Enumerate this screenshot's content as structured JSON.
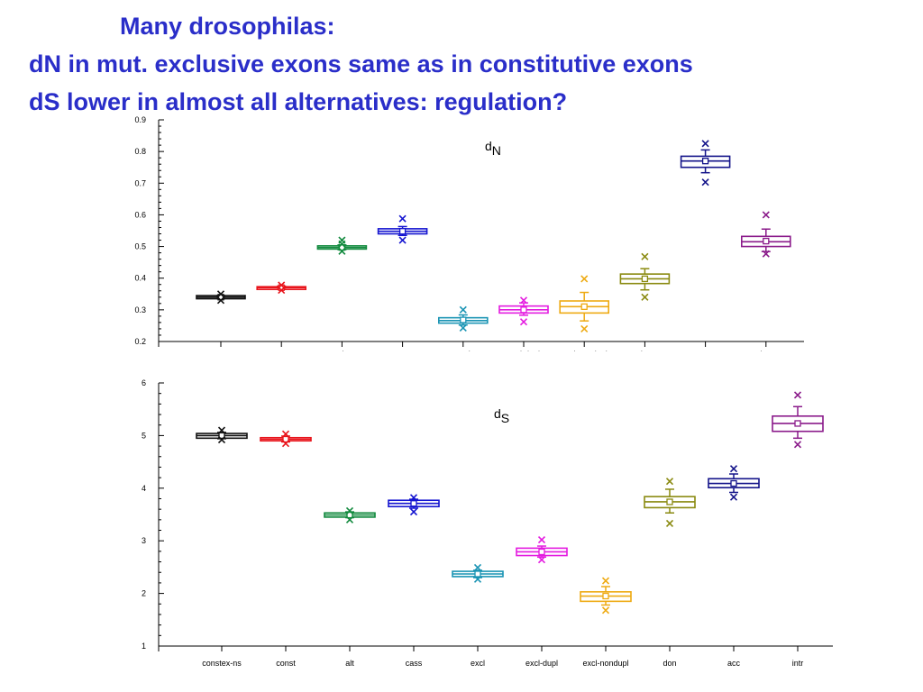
{
  "slide": {
    "title_line1": "Many drosophilas:",
    "title_line2": "dN in mut. exclusive exons same as in constitutive exons",
    "title_line3": "dS lower in almost all alternatives: regulation?",
    "title_color": "#2a2ec9"
  },
  "chart_data": [
    {
      "type": "box",
      "label_main": "d",
      "label_sub": "N",
      "ylim": [
        0.2,
        0.9
      ],
      "yticks": [
        "0.2",
        "0.3",
        "0.4",
        "0.5",
        "0.6",
        "0.7",
        "0.8",
        "0.9"
      ],
      "categories": [
        "constex-ns",
        "const",
        "alt",
        "cass",
        "excl",
        "excl-dupl",
        "excl-nondupl",
        "don",
        "acc",
        "intr"
      ],
      "colors": [
        "#111111",
        "#e8141b",
        "#128a3e",
        "#1414d0",
        "#1a94b4",
        "#e41be0",
        "#eeaa12",
        "#8a8a10",
        "#14148a",
        "#8a1a8a"
      ],
      "boxes": [
        {
          "q1": 0.335,
          "median": 0.34,
          "q3": 0.345,
          "whisker_low": 0.335,
          "whisker_high": 0.345,
          "mean": 0.34,
          "outliers": [
            0.33,
            0.35
          ]
        },
        {
          "q1": 0.365,
          "median": 0.37,
          "q3": 0.373,
          "whisker_low": 0.365,
          "whisker_high": 0.375,
          "mean": 0.37,
          "outliers": [
            0.362,
            0.378
          ]
        },
        {
          "q1": 0.492,
          "median": 0.497,
          "q3": 0.502,
          "whisker_low": 0.49,
          "whisker_high": 0.505,
          "mean": 0.497,
          "outliers": [
            0.485,
            0.52,
            0.508
          ]
        },
        {
          "q1": 0.54,
          "median": 0.548,
          "q3": 0.556,
          "whisker_low": 0.535,
          "whisker_high": 0.563,
          "mean": 0.548,
          "outliers": [
            0.52,
            0.588
          ]
        },
        {
          "q1": 0.258,
          "median": 0.266,
          "q3": 0.275,
          "whisker_low": 0.252,
          "whisker_high": 0.284,
          "mean": 0.268,
          "outliers": [
            0.243,
            0.3
          ]
        },
        {
          "q1": 0.29,
          "median": 0.3,
          "q3": 0.312,
          "whisker_low": 0.283,
          "whisker_high": 0.322,
          "mean": 0.3,
          "outliers": [
            0.262,
            0.33
          ]
        },
        {
          "q1": 0.29,
          "median": 0.31,
          "q3": 0.328,
          "whisker_low": 0.265,
          "whisker_high": 0.355,
          "mean": 0.31,
          "outliers": [
            0.24,
            0.398
          ]
        },
        {
          "q1": 0.383,
          "median": 0.398,
          "q3": 0.413,
          "whisker_low": 0.363,
          "whisker_high": 0.43,
          "mean": 0.398,
          "outliers": [
            0.34,
            0.468
          ]
        },
        {
          "q1": 0.75,
          "median": 0.77,
          "q3": 0.785,
          "whisker_low": 0.733,
          "whisker_high": 0.805,
          "mean": 0.77,
          "outliers": [
            0.703,
            0.825
          ]
        },
        {
          "q1": 0.5,
          "median": 0.515,
          "q3": 0.532,
          "whisker_low": 0.484,
          "whisker_high": 0.555,
          "mean": 0.517,
          "outliers": [
            0.477,
            0.6
          ]
        }
      ]
    },
    {
      "type": "box",
      "label_main": "d",
      "label_sub": "S",
      "ylim": [
        1,
        6
      ],
      "yticks": [
        "1",
        "2",
        "3",
        "4",
        "5",
        "6"
      ],
      "categories": [
        "constex-ns",
        "const",
        "alt",
        "cass",
        "excl",
        "excl-dupl",
        "excl-nondupl",
        "don",
        "acc",
        "intr"
      ],
      "colors": [
        "#111111",
        "#e8141b",
        "#128a3e",
        "#1414d0",
        "#1a94b4",
        "#e41be0",
        "#eeaa12",
        "#8a8a10",
        "#14148a",
        "#8a1a8a"
      ],
      "boxes": [
        {
          "q1": 4.95,
          "median": 5.0,
          "q3": 5.04,
          "whisker_low": 4.94,
          "whisker_high": 5.06,
          "mean": 5.0,
          "outliers": [
            4.92,
            5.1
          ]
        },
        {
          "q1": 4.9,
          "median": 4.93,
          "q3": 4.96,
          "whisker_low": 4.88,
          "whisker_high": 4.99,
          "mean": 4.93,
          "outliers": [
            4.85,
            5.03
          ]
        },
        {
          "q1": 3.45,
          "median": 3.49,
          "q3": 3.53,
          "whisker_low": 3.44,
          "whisker_high": 3.55,
          "mean": 3.49,
          "outliers": [
            3.4,
            3.57
          ]
        },
        {
          "q1": 3.65,
          "median": 3.71,
          "q3": 3.77,
          "whisker_low": 3.62,
          "whisker_high": 3.79,
          "mean": 3.71,
          "outliers": [
            3.55,
            3.82
          ]
        },
        {
          "q1": 2.32,
          "median": 2.37,
          "q3": 2.42,
          "whisker_low": 2.3,
          "whisker_high": 2.44,
          "mean": 2.37,
          "outliers": [
            2.27,
            2.49
          ]
        },
        {
          "q1": 2.72,
          "median": 2.79,
          "q3": 2.86,
          "whisker_low": 2.69,
          "whisker_high": 2.9,
          "mean": 2.79,
          "outliers": [
            2.64,
            3.02
          ]
        },
        {
          "q1": 1.85,
          "median": 1.95,
          "q3": 2.03,
          "whisker_low": 1.78,
          "whisker_high": 2.13,
          "mean": 1.95,
          "outliers": [
            1.68,
            2.24
          ]
        },
        {
          "q1": 3.63,
          "median": 3.74,
          "q3": 3.84,
          "whisker_low": 3.53,
          "whisker_high": 3.98,
          "mean": 3.74,
          "outliers": [
            3.33,
            4.13
          ]
        },
        {
          "q1": 4.01,
          "median": 4.09,
          "q3": 4.18,
          "whisker_low": 3.92,
          "whisker_high": 4.27,
          "mean": 4.09,
          "outliers": [
            3.83,
            4.37
          ]
        },
        {
          "q1": 5.08,
          "median": 5.23,
          "q3": 5.37,
          "whisker_low": 4.95,
          "whisker_high": 5.55,
          "mean": 5.23,
          "outliers": [
            4.83,
            5.77
          ]
        }
      ]
    }
  ]
}
